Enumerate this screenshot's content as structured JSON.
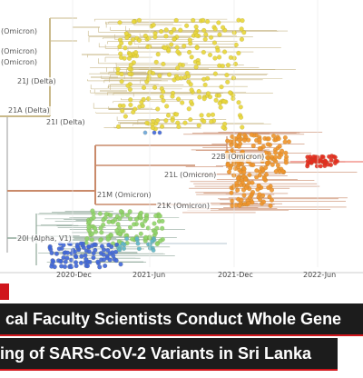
{
  "clades": [
    {
      "id": "delta-top-1",
      "label": "(Omicron)"
    },
    {
      "id": "delta-top-2",
      "label": "(Omicron)"
    },
    {
      "id": "delta-top-3",
      "label": "(Omicron)"
    },
    {
      "id": "21j",
      "label": "21J (Delta)"
    },
    {
      "id": "21a",
      "label": "21A (Delta)"
    },
    {
      "id": "21i",
      "label": "21I (Delta)"
    },
    {
      "id": "22b",
      "label": "22B (Omicron)"
    },
    {
      "id": "21l",
      "label": "21L (Omicron)"
    },
    {
      "id": "21m",
      "label": "21M (Omicron)"
    },
    {
      "id": "21k",
      "label": "21K (Omicron)"
    },
    {
      "id": "20i",
      "label": "20I (Alpha, V1)"
    }
  ],
  "time_axis": [
    "2020-Dec",
    "2021-Jun",
    "2021-Dec",
    "2022-Jun"
  ],
  "headline": {
    "line1": "cal Faculty Scientists Conduct Whole Gene",
    "line2": "ing of SARS-CoV-2 Variants in Sri Lanka"
  },
  "colors": {
    "delta": "#e8d63a",
    "omicron_ba2": "#f0932b",
    "omicron_ba5": "#e62b1e",
    "alpha": "#8ed46a",
    "early": "#3f66d9",
    "branch_delta": "#c9b98a",
    "branch_omicron": "#c98a6a",
    "branch_alpha": "#8fa89a",
    "accent": "#d0151c"
  }
}
